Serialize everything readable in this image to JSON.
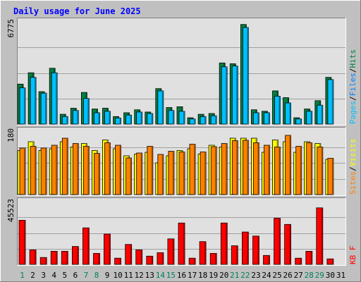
{
  "chart_data": {
    "type": "bar",
    "title": "Daily usage for June 2025",
    "x": [
      "1",
      "2",
      "3",
      "4",
      "5",
      "6",
      "7",
      "8",
      "9",
      "10",
      "11",
      "12",
      "13",
      "14",
      "15",
      "16",
      "17",
      "18",
      "19",
      "20",
      "21",
      "22",
      "23",
      "24",
      "25",
      "26",
      "27",
      "28",
      "29",
      "30",
      "31"
    ],
    "weekend_days": [
      "1",
      "7",
      "8",
      "14",
      "15",
      "21",
      "22",
      "28",
      "29"
    ],
    "colors": {
      "background": "#c0c0c0",
      "plot_bg": "#e0e0e0",
      "hits": "#008040",
      "files": "#00c0ff",
      "pages": "#0080ff",
      "visits": "#ffff00",
      "sites": "#ff8000",
      "kbytes": "#ff0000",
      "weekday_label": "#000000",
      "weekend_label": "#00805c"
    },
    "panels": [
      {
        "id": "hits-files-pages",
        "ymax_label": "6775",
        "ylim": [
          0,
          6775
        ],
        "label_parts": [
          {
            "text": "Pages",
            "color": "#00c0ff"
          },
          {
            "text": "/",
            "color": "#000000"
          },
          {
            "text": "Files",
            "color": "#0080ff"
          },
          {
            "text": "/",
            "color": "#000000"
          },
          {
            "text": "Hits",
            "color": "#008040"
          }
        ],
        "series": [
          {
            "name": "Hits",
            "color": "#008040",
            "values": [
              2650,
              3400,
              2150,
              3700,
              650,
              1050,
              2100,
              1000,
              1050,
              500,
              750,
              950,
              800,
              2350,
              1100,
              1150,
              420,
              650,
              700,
              4050,
              4000,
              6600,
              950,
              850,
              2200,
              1750,
              420,
              1000,
              1550,
              3100,
              0
            ]
          },
          {
            "name": "Files",
            "color": "#00c0ff",
            "values": [
              2400,
              3100,
              2050,
              3400,
              500,
              900,
              1700,
              750,
              850,
              400,
              600,
              800,
              700,
              2200,
              900,
              850,
              340,
              500,
              550,
              3800,
              3850,
              6400,
              750,
              750,
              1850,
              1400,
              340,
              850,
              1250,
              2950,
              0
            ]
          },
          {
            "name": "Pages",
            "color": "#0080ff",
            "values": [
              0,
              0,
              0,
              0,
              0,
              0,
              0,
              0,
              0,
              0,
              0,
              0,
              0,
              0,
              0,
              0,
              0,
              0,
              0,
              0,
              0,
              0,
              0,
              0,
              0,
              0,
              0,
              0,
              0,
              0,
              0
            ]
          }
        ]
      },
      {
        "id": "visits-sites",
        "ymax_label": "180",
        "ylim": [
          0,
          180
        ],
        "label_parts": [
          {
            "text": "Sites",
            "color": "#ff8000"
          },
          {
            "text": "/",
            "color": "#000000"
          },
          {
            "text": "Visits",
            "color": "#ffff00"
          }
        ],
        "series": [
          {
            "name": "Visits",
            "color": "#ffff00",
            "values": [
              125,
              150,
              125,
              130,
              150,
              135,
              145,
              125,
              155,
              130,
              110,
              115,
              120,
              90,
              110,
              125,
              130,
              115,
              140,
              135,
              160,
              160,
              160,
              120,
              155,
              150,
              120,
              150,
              145,
              100,
              0
            ]
          },
          {
            "name": "Sites",
            "color": "#ff8000",
            "values": [
              132,
              137,
              132,
              140,
              160,
              145,
              137,
              117,
              147,
              140,
              104,
              118,
              137,
              114,
              123,
              121,
              143,
              121,
              136,
              145,
              153,
              154,
              147,
              140,
              135,
              168,
              137,
              147,
              135,
              103,
              0
            ]
          }
        ]
      },
      {
        "id": "kbytes",
        "ymax_label": "45523",
        "ylim": [
          0,
          45523
        ],
        "label_parts": [
          {
            "text": "KB F",
            "color": "#ff0000"
          }
        ],
        "series": [
          {
            "name": "KB F",
            "color": "#ff0000",
            "values": [
              32000,
              10500,
              5000,
              9500,
              9500,
              13000,
              26500,
              8000,
              22000,
              4500,
              14500,
              10500,
              6000,
              8500,
              18500,
              30000,
              4500,
              16500,
              8000,
              30000,
              13500,
              23500,
              20500,
              6500,
              33500,
              29000,
              4500,
              9500,
              41000,
              4000,
              0
            ]
          }
        ]
      }
    ]
  }
}
